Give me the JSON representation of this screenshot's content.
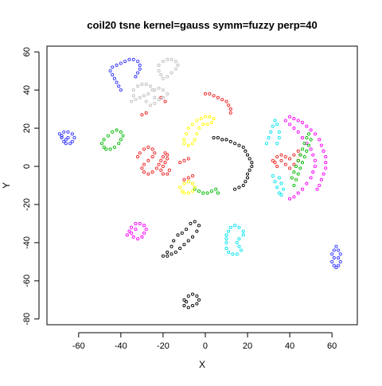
{
  "chart_data": {
    "type": "scatter",
    "title": "coil20 tsne kernel=gauss symm=fuzzy perp=40",
    "xlabel": "X",
    "ylabel": "Y",
    "xlim": [
      -75,
      72
    ],
    "ylim": [
      -83,
      63
    ],
    "xticks": [
      "-60",
      "-40",
      "-20",
      "0",
      "20",
      "40",
      "60"
    ],
    "yticks": [
      "-80",
      "-60",
      "-40",
      "-20",
      "0",
      "20",
      "40",
      "60"
    ],
    "grid": false,
    "legend": "none",
    "point_marker": "small open circle",
    "series": [
      {
        "color": "#3333ff",
        "points": [
          [
            -69,
            17
          ],
          [
            -68,
            15
          ],
          [
            -67,
            13
          ],
          [
            -66,
            12
          ],
          [
            -64,
            12
          ],
          [
            -63,
            13
          ],
          [
            -62,
            15
          ],
          [
            -63,
            17
          ],
          [
            -65,
            18
          ],
          [
            -67,
            18
          ],
          [
            -68,
            16
          ],
          [
            -66,
            14
          ],
          [
            -65,
            15
          ],
          [
            -40,
            40
          ],
          [
            -41,
            42
          ],
          [
            -42,
            44
          ],
          [
            -43,
            46
          ],
          [
            -44,
            48
          ],
          [
            -45,
            50
          ],
          [
            -44,
            52
          ],
          [
            -42,
            53
          ],
          [
            -40,
            54
          ],
          [
            -38,
            55
          ],
          [
            -36,
            56
          ],
          [
            -34,
            56
          ],
          [
            -32,
            55
          ],
          [
            -31,
            53
          ],
          [
            -31,
            51
          ],
          [
            -32,
            49
          ],
          [
            -33,
            47
          ],
          [
            62,
            -42
          ],
          [
            61,
            -44
          ],
          [
            60,
            -46
          ],
          [
            61,
            -48
          ],
          [
            60,
            -50
          ],
          [
            61,
            -52
          ],
          [
            62,
            -53
          ],
          [
            63,
            -52
          ],
          [
            64,
            -50
          ],
          [
            63,
            -48
          ],
          [
            64,
            -46
          ],
          [
            63,
            -44
          ]
        ]
      },
      {
        "color": "#00bb00",
        "points": [
          [
            -49,
            12
          ],
          [
            -48,
            14
          ],
          [
            -46,
            16
          ],
          [
            -44,
            18
          ],
          [
            -42,
            19
          ],
          [
            -40,
            18
          ],
          [
            -39,
            16
          ],
          [
            -40,
            14
          ],
          [
            -41,
            12
          ],
          [
            -43,
            10
          ],
          [
            -45,
            9
          ],
          [
            -47,
            9
          ],
          [
            -48,
            10
          ],
          [
            -5,
            -12
          ],
          [
            -3,
            -13
          ],
          [
            -1,
            -14
          ],
          [
            1,
            -14
          ],
          [
            3,
            -13
          ],
          [
            5,
            -12
          ],
          [
            6,
            -14
          ]
        ]
      },
      {
        "color": "#ee2222",
        "points": [
          [
            -32,
            5
          ],
          [
            -31,
            7
          ],
          [
            -29,
            9
          ],
          [
            -27,
            10
          ],
          [
            -25,
            9
          ],
          [
            -24,
            7
          ],
          [
            -25,
            5
          ],
          [
            -27,
            3
          ],
          [
            -29,
            1
          ],
          [
            -30,
            -1
          ],
          [
            -29,
            -3
          ],
          [
            -27,
            -4
          ],
          [
            -25,
            -3
          ],
          [
            -23,
            -1
          ],
          [
            -22,
            1
          ],
          [
            -21,
            3
          ],
          [
            -20,
            5
          ],
          [
            -19,
            7
          ],
          [
            -18,
            6
          ],
          [
            -18,
            4
          ],
          [
            -19,
            2
          ],
          [
            -20,
            0
          ],
          [
            -21,
            -2
          ],
          [
            -20,
            -4
          ],
          [
            -18,
            -4
          ],
          [
            -17,
            -2
          ],
          [
            0,
            38
          ],
          [
            2,
            38
          ],
          [
            4,
            37
          ],
          [
            6,
            36
          ],
          [
            8,
            35
          ],
          [
            10,
            34
          ],
          [
            11,
            32
          ],
          [
            12,
            30
          ],
          [
            12,
            28
          ],
          [
            32,
            3
          ],
          [
            34,
            5
          ],
          [
            36,
            6
          ],
          [
            38,
            5
          ],
          [
            40,
            4
          ],
          [
            42,
            6
          ],
          [
            44,
            8
          ],
          [
            45,
            6
          ],
          [
            44,
            3
          ],
          [
            42,
            1
          ],
          [
            40,
            -1
          ],
          [
            38,
            1
          ],
          [
            36,
            3
          ],
          [
            34,
            0
          ],
          [
            33,
            2
          ],
          [
            -28,
            28
          ],
          [
            -30,
            27
          ],
          [
            -21,
            36
          ],
          [
            -19,
            34
          ],
          [
            -12,
            2
          ],
          [
            -10,
            3
          ],
          [
            -8,
            4
          ],
          [
            -6,
            -5
          ],
          [
            -8,
            -6
          ],
          [
            -10,
            -7
          ]
        ]
      },
      {
        "color": "#000000",
        "points": [
          [
            4,
            15
          ],
          [
            6,
            15
          ],
          [
            8,
            14
          ],
          [
            10,
            14
          ],
          [
            12,
            13
          ],
          [
            14,
            12
          ],
          [
            16,
            11
          ],
          [
            18,
            10
          ],
          [
            19,
            8
          ],
          [
            20,
            6
          ],
          [
            21,
            4
          ],
          [
            22,
            2
          ],
          [
            22,
            0
          ],
          [
            21,
            -2
          ],
          [
            20,
            -4
          ],
          [
            20,
            -6
          ],
          [
            19,
            -8
          ],
          [
            18,
            -10
          ],
          [
            16,
            -11
          ],
          [
            14,
            -12
          ],
          [
            -20,
            -47
          ],
          [
            -18,
            -45
          ],
          [
            -16,
            -42
          ],
          [
            -15,
            -39
          ],
          [
            -13,
            -36
          ],
          [
            -11,
            -35
          ],
          [
            -9,
            -33
          ],
          [
            -7,
            -30
          ],
          [
            -5,
            -29
          ],
          [
            -3,
            -31
          ],
          [
            -4,
            -34
          ],
          [
            -6,
            -37
          ],
          [
            -8,
            -39
          ],
          [
            -10,
            -41
          ],
          [
            -12,
            -43
          ],
          [
            -14,
            -45
          ],
          [
            -16,
            -46
          ],
          [
            -18,
            -47
          ],
          [
            -10,
            -70
          ],
          [
            -8,
            -68
          ],
          [
            -6,
            -67
          ],
          [
            -4,
            -68
          ],
          [
            -3,
            -70
          ],
          [
            -4,
            -72
          ],
          [
            -6,
            -73
          ],
          [
            -8,
            -74
          ],
          [
            -10,
            -73
          ],
          [
            -9,
            -71
          ]
        ]
      },
      {
        "color": "#00e5ee",
        "points": [
          [
            10,
            -36
          ],
          [
            11,
            -34
          ],
          [
            12,
            -32
          ],
          [
            14,
            -31
          ],
          [
            16,
            -32
          ],
          [
            18,
            -34
          ],
          [
            18,
            -36
          ],
          [
            16,
            -38
          ],
          [
            15,
            -40
          ],
          [
            16,
            -42
          ],
          [
            17,
            -44
          ],
          [
            15,
            -46
          ],
          [
            13,
            -46
          ],
          [
            11,
            -45
          ],
          [
            10,
            -43
          ],
          [
            10,
            -40
          ],
          [
            10,
            -38
          ],
          [
            29,
            12
          ],
          [
            30,
            15
          ],
          [
            31,
            18
          ],
          [
            32,
            21
          ],
          [
            33,
            24
          ],
          [
            34,
            22
          ],
          [
            35,
            18
          ],
          [
            35,
            15
          ],
          [
            34,
            12
          ],
          [
            32,
            -5
          ],
          [
            33,
            -8
          ],
          [
            34,
            -11
          ],
          [
            35,
            -14
          ],
          [
            36,
            -15
          ],
          [
            37,
            -12
          ],
          [
            36,
            -9
          ],
          [
            35,
            -6
          ]
        ]
      },
      {
        "color": "#ff00ff",
        "points": [
          [
            -37,
            -36
          ],
          [
            -36,
            -34
          ],
          [
            -35,
            -32
          ],
          [
            -33,
            -30
          ],
          [
            -31,
            -30
          ],
          [
            -29,
            -31
          ],
          [
            -28,
            -33
          ],
          [
            -29,
            -35
          ],
          [
            -30,
            -37
          ],
          [
            -32,
            -38
          ],
          [
            -34,
            -37
          ],
          [
            -35,
            -35
          ],
          [
            -33,
            -33
          ],
          [
            40,
            26
          ],
          [
            42,
            25
          ],
          [
            44,
            24
          ],
          [
            46,
            23
          ],
          [
            48,
            21
          ],
          [
            50,
            19
          ],
          [
            52,
            17
          ],
          [
            54,
            14
          ],
          [
            55,
            11
          ],
          [
            56,
            8
          ],
          [
            57,
            5
          ],
          [
            57,
            2
          ],
          [
            57,
            -1
          ],
          [
            56,
            -4
          ],
          [
            55,
            -7
          ],
          [
            54,
            -10
          ],
          [
            53,
            -12
          ],
          [
            38,
            24
          ],
          [
            40,
            22
          ],
          [
            42,
            20
          ],
          [
            44,
            18
          ],
          [
            46,
            15
          ],
          [
            48,
            12
          ],
          [
            50,
            9
          ],
          [
            51,
            6
          ],
          [
            52,
            3
          ],
          [
            52,
            0
          ],
          [
            51,
            -3
          ],
          [
            50,
            -6
          ],
          [
            48,
            -9
          ],
          [
            46,
            -12
          ],
          [
            44,
            -14
          ],
          [
            42,
            -16
          ],
          [
            40,
            -17
          ]
        ]
      },
      {
        "color": "#ffff00",
        "points": [
          [
            -10,
            14
          ],
          [
            -9,
            17
          ],
          [
            -8,
            20
          ],
          [
            -6,
            22
          ],
          [
            -4,
            24
          ],
          [
            -2,
            25
          ],
          [
            0,
            26
          ],
          [
            2,
            26
          ],
          [
            4,
            25
          ],
          [
            3,
            23
          ],
          [
            1,
            22
          ],
          [
            -1,
            22
          ],
          [
            -3,
            20
          ],
          [
            -4,
            17
          ],
          [
            -5,
            14
          ],
          [
            -6,
            12
          ],
          [
            -8,
            11
          ],
          [
            -10,
            12
          ],
          [
            -12,
            -11
          ],
          [
            -10,
            -9
          ],
          [
            -8,
            -8
          ],
          [
            -6,
            -9
          ],
          [
            -5,
            -11
          ],
          [
            -6,
            -13
          ],
          [
            -8,
            -14
          ],
          [
            -10,
            -14
          ],
          [
            -11,
            -13
          ]
        ]
      },
      {
        "color": "#bebebe",
        "points": [
          [
            -22,
            53
          ],
          [
            -20,
            55
          ],
          [
            -18,
            56
          ],
          [
            -16,
            56
          ],
          [
            -14,
            55
          ],
          [
            -13,
            53
          ],
          [
            -14,
            51
          ],
          [
            -16,
            49
          ],
          [
            -18,
            47
          ],
          [
            -20,
            46
          ],
          [
            -21,
            48
          ],
          [
            -22,
            50
          ],
          [
            -34,
            40
          ],
          [
            -32,
            42
          ],
          [
            -30,
            43
          ],
          [
            -28,
            43
          ],
          [
            -26,
            42
          ],
          [
            -25,
            40
          ],
          [
            -27,
            38
          ],
          [
            -29,
            37
          ],
          [
            -31,
            36
          ],
          [
            -33,
            35
          ],
          [
            -35,
            34
          ],
          [
            -34,
            37
          ],
          [
            -24,
            40
          ],
          [
            -22,
            41
          ],
          [
            -20,
            40
          ],
          [
            -18,
            38
          ],
          [
            -20,
            36
          ],
          [
            -22,
            35
          ],
          [
            -24,
            36
          ],
          [
            -28,
            34
          ],
          [
            -26,
            32
          ],
          [
            -24,
            33
          ]
        ]
      },
      {
        "color": "#00bb00",
        "points": [
          [
            41,
            -6
          ],
          [
            42,
            -3
          ],
          [
            43,
            0
          ],
          [
            44,
            3
          ],
          [
            45,
            6
          ],
          [
            46,
            9
          ],
          [
            47,
            12
          ],
          [
            48,
            15
          ],
          [
            49,
            17
          ],
          [
            50,
            14
          ],
          [
            49,
            11
          ],
          [
            48,
            8
          ],
          [
            47,
            5
          ],
          [
            46,
            2
          ],
          [
            45,
            -1
          ],
          [
            44,
            -4
          ],
          [
            43,
            -7
          ],
          [
            42,
            -10
          ]
        ]
      }
    ]
  }
}
